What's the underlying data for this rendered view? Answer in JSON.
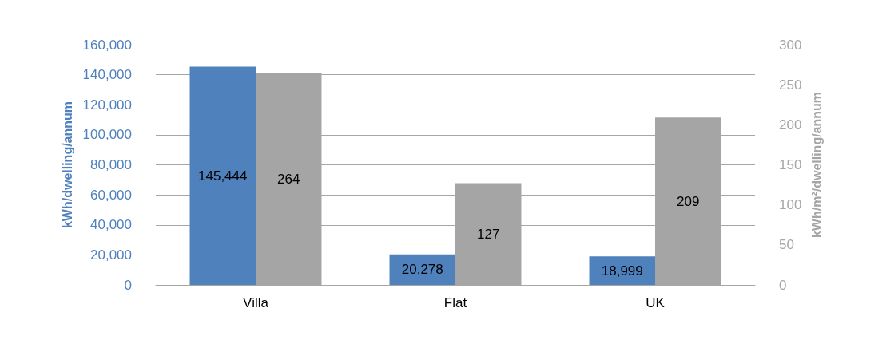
{
  "chart_data": {
    "type": "bar",
    "ylabel": "kWh/dwelling/annum",
    "y2label": "kWh/m²/dwelling/annum",
    "categories": [
      "Villa",
      "Flat",
      "UK"
    ],
    "series": [
      {
        "color": "#4f81bd",
        "axis": "y",
        "values": [
          145444,
          20278,
          18999
        ],
        "value_labels": [
          "145,444",
          "20,278",
          "18,999"
        ]
      },
      {
        "color": "#a5a5a5",
        "axis": "y2",
        "values": [
          264,
          127,
          209
        ],
        "value_labels": [
          "264",
          "127",
          "209"
        ]
      }
    ],
    "ylim": [
      0,
      160000
    ],
    "yticks": [
      {
        "value": 0,
        "label": "0"
      },
      {
        "value": 20000,
        "label": "20,000"
      },
      {
        "value": 40000,
        "label": "40,000"
      },
      {
        "value": 60000,
        "label": "60,000"
      },
      {
        "value": 80000,
        "label": "80,000"
      },
      {
        "value": 100000,
        "label": "100,000"
      },
      {
        "value": 120000,
        "label": "120,000"
      },
      {
        "value": 140000,
        "label": "140,000"
      },
      {
        "value": 160000,
        "label": "160,000"
      }
    ],
    "y2lim": [
      0,
      300
    ],
    "y2ticks": [
      0,
      50,
      100,
      150,
      200,
      250,
      300
    ],
    "grid": "y"
  }
}
